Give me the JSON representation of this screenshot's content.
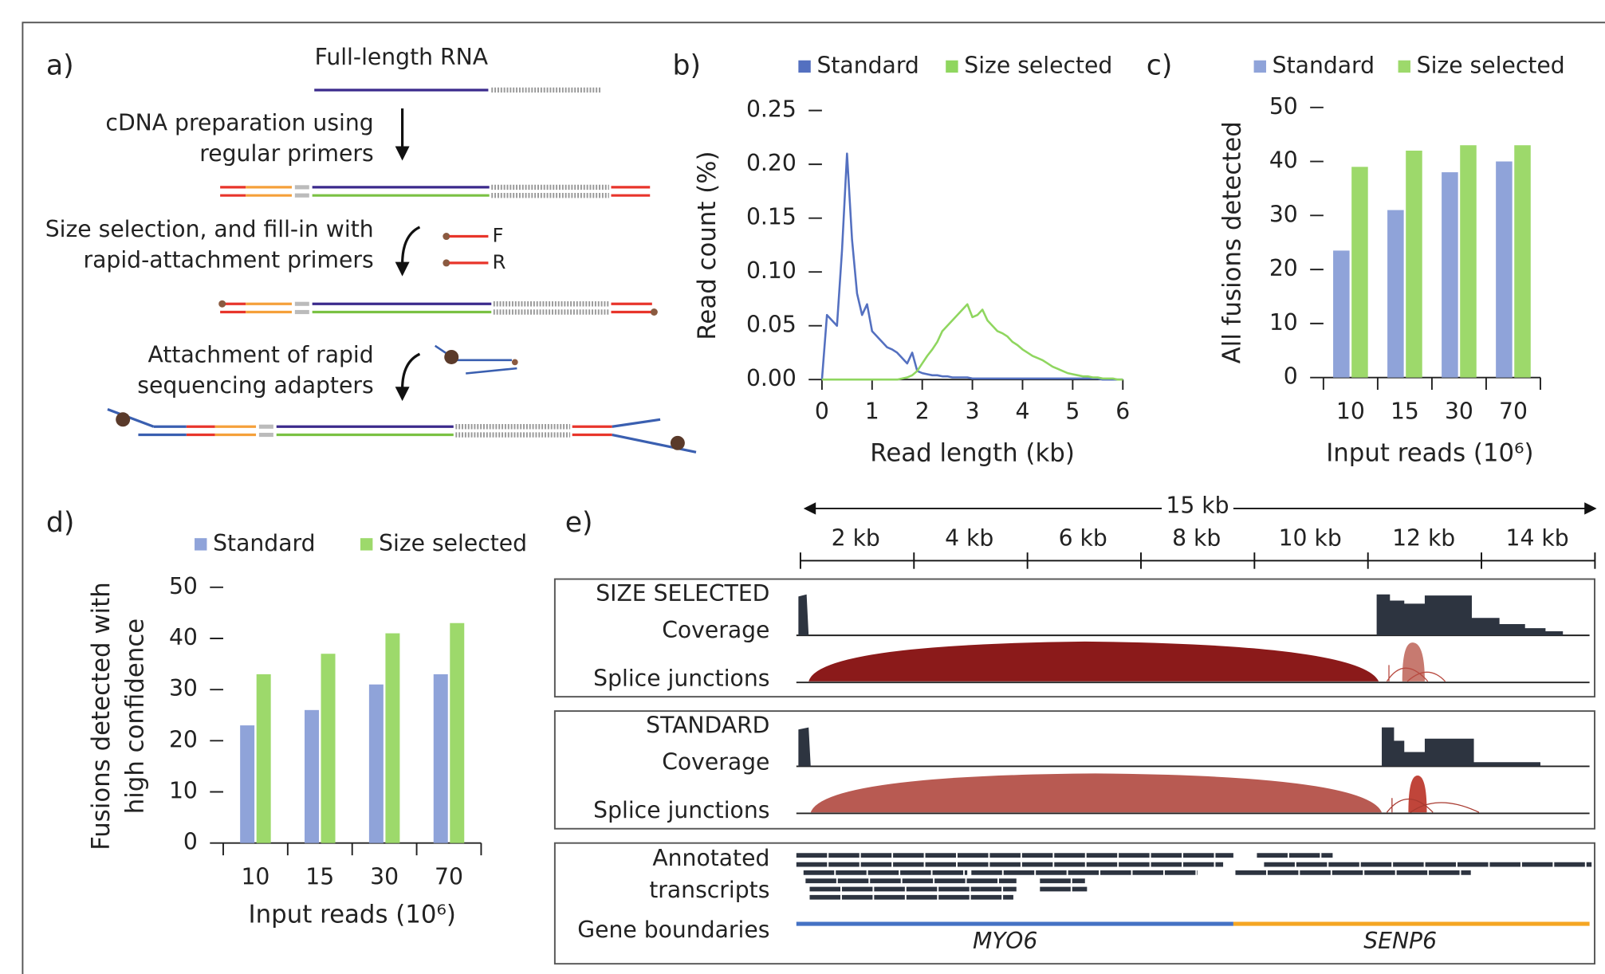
{
  "diagram_a": {
    "label": "a)",
    "rna": "Full-length RNA",
    "step1": [
      "cDNA preparation using",
      "regular primers"
    ],
    "step2": [
      "Size selection, and fill-in with",
      "rapid-attachment primers"
    ],
    "primer_f": "F",
    "primer_r": "R",
    "step3": [
      "Attachment of rapid",
      "sequencing adapters"
    ]
  },
  "chart_data": [
    {
      "type": "line",
      "panel_label": "b)",
      "x": [
        0,
        0.1,
        0.2,
        0.3,
        0.4,
        0.5,
        0.6,
        0.7,
        0.8,
        0.9,
        1,
        1.1,
        1.2,
        1.3,
        1.4,
        1.5,
        1.6,
        1.7,
        1.8,
        1.9,
        2,
        2.1,
        2.2,
        2.3,
        2.4,
        2.5,
        2.6,
        2.7,
        2.8,
        2.9,
        3,
        3.1,
        3.2,
        3.3,
        3.4,
        3.5,
        3.6,
        3.7,
        3.8,
        3.9,
        4,
        4.1,
        4.2,
        4.3,
        4.4,
        4.5,
        4.6,
        4.7,
        4.8,
        4.9,
        5,
        5.1,
        5.2,
        5.3,
        5.4,
        5.5,
        5.6,
        5.7,
        5.8,
        5.9,
        6
      ],
      "series": [
        {
          "name": "Standard",
          "color": "#5470c0",
          "values": [
            0,
            0.06,
            0.055,
            0.05,
            0.12,
            0.21,
            0.13,
            0.08,
            0.06,
            0.07,
            0.045,
            0.04,
            0.035,
            0.03,
            0.028,
            0.025,
            0.02,
            0.015,
            0.025,
            0.008,
            0.006,
            0.005,
            0.004,
            0.004,
            0.003,
            0.003,
            0.002,
            0.002,
            0.002,
            0.002,
            0.001,
            0.001,
            0.001,
            0.001,
            0.001,
            0.001,
            0.001,
            0.001,
            0.001,
            0.001,
            0.001,
            0.001,
            0.001,
            0.001,
            0.001,
            0.001,
            0.001,
            0.001,
            0.001,
            0.001,
            0.001,
            0.001,
            0.001,
            0.001,
            0.001,
            0.001,
            0,
            0,
            0,
            0,
            0
          ]
        },
        {
          "name": "Size selected",
          "color": "#8fd65f",
          "values": [
            0,
            0,
            0,
            0,
            0,
            0,
            0,
            0,
            0,
            0,
            0,
            0,
            0,
            0,
            0,
            0,
            0.001,
            0.002,
            0.004,
            0.008,
            0.015,
            0.022,
            0.028,
            0.035,
            0.045,
            0.05,
            0.055,
            0.06,
            0.065,
            0.07,
            0.058,
            0.06,
            0.065,
            0.055,
            0.05,
            0.045,
            0.043,
            0.04,
            0.035,
            0.032,
            0.028,
            0.025,
            0.022,
            0.02,
            0.018,
            0.015,
            0.012,
            0.01,
            0.008,
            0.006,
            0.005,
            0.004,
            0.003,
            0.003,
            0.002,
            0.002,
            0.001,
            0.001,
            0.001,
            0,
            0
          ]
        }
      ],
      "xlim": [
        0,
        6
      ],
      "xticks": [
        0,
        1,
        2,
        3,
        4,
        5,
        6
      ],
      "ylim": [
        0,
        0.25
      ],
      "yticks": [
        {
          "value": 0,
          "label": "0.00"
        },
        0.05,
        {
          "value": 0.1,
          "label": "0.10"
        },
        0.15,
        {
          "value": 0.2,
          "label": "0.20"
        },
        0.25
      ],
      "xlabel": "Read length (kb)",
      "ylabel": "Read count (%)"
    },
    {
      "type": "bar",
      "panel_label": "c)",
      "categories": [
        "10",
        "15",
        "30",
        "70"
      ],
      "series": [
        {
          "name": "Standard",
          "color": "#8fa3d9",
          "values": [
            23.5,
            31,
            38,
            40
          ]
        },
        {
          "name": "Size selected",
          "color": "#9dd96b",
          "values": [
            39,
            42,
            43,
            43
          ]
        }
      ],
      "ylim": [
        0,
        50
      ],
      "yticks": [
        0,
        10,
        20,
        30,
        40,
        50
      ],
      "xlabel": "Input reads (10⁶)",
      "ylabel": "All fusions detected"
    },
    {
      "type": "bar",
      "panel_label": "d)",
      "categories": [
        "10",
        "15",
        "30",
        "70"
      ],
      "series": [
        {
          "name": "Standard",
          "color": "#8fa3d9",
          "values": [
            23,
            26,
            31,
            33
          ]
        },
        {
          "name": "Size selected",
          "color": "#9dd96b",
          "values": [
            33,
            37,
            41,
            43
          ]
        }
      ],
      "ylim": [
        0,
        50
      ],
      "yticks": [
        0,
        10,
        20,
        30,
        40,
        50
      ],
      "xlabel": "Input reads (10⁶)",
      "ylabel": [
        "Fusions detected with",
        "high confidence"
      ]
    }
  ],
  "diagram_e": {
    "label": "e)",
    "span": "15 kb",
    "ticks": [
      "2 kb",
      "4 kb",
      "6 kb",
      "8 kb",
      "10 kb",
      "12 kb",
      "14 kb"
    ],
    "tracks": [
      {
        "title": "SIZE SELECTED",
        "coverage": "Coverage",
        "junctions": "Splice junctions"
      },
      {
        "title": "STANDARD",
        "coverage": "Coverage",
        "junctions": "Splice junctions"
      }
    ],
    "annotations": [
      "Annotated",
      "transcripts"
    ],
    "gene_boundaries": "Gene boundaries",
    "genes": [
      "MYO6",
      "SENP6"
    ]
  }
}
